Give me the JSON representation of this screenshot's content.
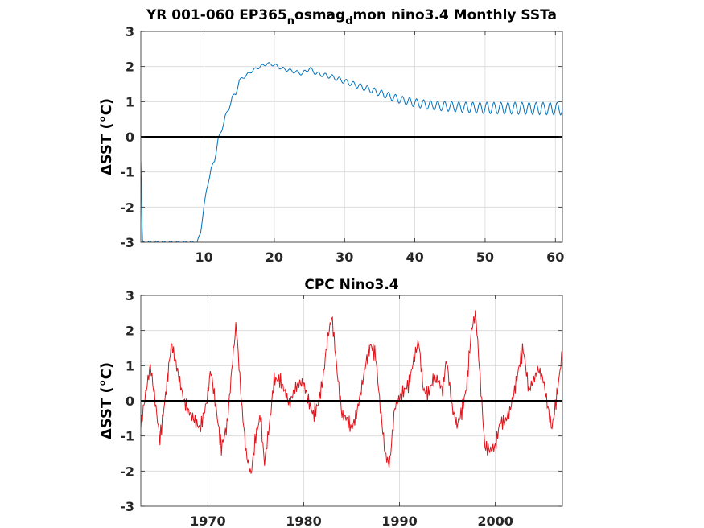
{
  "chart_data": [
    {
      "type": "line",
      "title_parts": [
        "YR 001-060 EP365",
        "n",
        "osmag",
        "d",
        "mon nino3.4 Monthly SSTa"
      ],
      "ylabel": "ΔSST (°C)",
      "xlim": [
        1,
        61
      ],
      "ylim": [
        -3,
        3
      ],
      "xticks": [
        10,
        20,
        30,
        40,
        50,
        60
      ],
      "yticks": [
        -3,
        -2,
        -1,
        0,
        1,
        2,
        3
      ],
      "grid": true,
      "zero_line": 0,
      "series": [
        {
          "color": "#0072bd",
          "x": [
            1.0,
            1.1,
            1.2,
            9.0,
            9.5,
            10.0,
            10.3,
            11.0,
            11.5,
            12.0,
            12.5,
            13.0,
            13.5,
            14.0,
            14.5,
            15.0,
            16.0,
            17.0,
            18.0,
            19.0,
            20.0,
            21.0,
            22.0,
            23.0,
            24.0,
            25.0,
            26.0,
            28.0,
            30.0,
            32.0,
            35.0,
            38.0,
            40.0,
            42.0,
            45.0,
            48.0,
            50.0,
            55.0,
            60.0,
            61.0
          ],
          "y": [
            -0.7,
            -1.5,
            -3.0,
            -3.0,
            -2.75,
            -1.95,
            -1.6,
            -0.9,
            -0.7,
            -0.05,
            0.15,
            0.6,
            0.75,
            1.15,
            1.2,
            1.6,
            1.75,
            1.9,
            2.0,
            2.08,
            2.05,
            1.95,
            1.9,
            1.85,
            1.8,
            1.95,
            1.8,
            1.72,
            1.58,
            1.45,
            1.25,
            1.05,
            0.97,
            0.9,
            0.86,
            0.83,
            0.82,
            0.81,
            0.8,
            0.8
          ],
          "seasonal_amplitude": [
            [
              1,
              0.03
            ],
            [
              20,
              0.04
            ],
            [
              30,
              0.07
            ],
            [
              40,
              0.12
            ],
            [
              50,
              0.16
            ],
            [
              61,
              0.18
            ]
          ]
        }
      ]
    },
    {
      "type": "line",
      "title": "CPC Nino3.4",
      "ylabel": "ΔSST (°C)",
      "xlim": [
        1963,
        2007
      ],
      "ylim": [
        -3,
        3
      ],
      "xticks": [
        1970,
        1980,
        1990,
        2000
      ],
      "yticks": [
        -3,
        -2,
        -1,
        0,
        1,
        2,
        3
      ],
      "grid": true,
      "zero_line": 0,
      "series": [
        {
          "color": "#e0141b",
          "x": [
            1963.0,
            1963.5,
            1964.0,
            1964.4,
            1965.0,
            1965.6,
            1966.2,
            1966.8,
            1967.5,
            1968.0,
            1968.5,
            1969.2,
            1969.9,
            1970.3,
            1970.9,
            1971.4,
            1972.0,
            1972.6,
            1972.95,
            1973.5,
            1974.0,
            1974.5,
            1975.0,
            1975.5,
            1975.9,
            1976.5,
            1976.9,
            1977.5,
            1978.0,
            1978.5,
            1979.0,
            1979.5,
            1980.0,
            1980.5,
            1981.0,
            1981.5,
            1982.0,
            1982.5,
            1982.95,
            1983.5,
            1984.0,
            1984.5,
            1985.0,
            1985.5,
            1986.0,
            1986.5,
            1987.0,
            1987.5,
            1988.0,
            1988.5,
            1988.95,
            1989.5,
            1990.0,
            1990.5,
            1991.0,
            1991.5,
            1992.0,
            1992.5,
            1993.0,
            1993.5,
            1994.0,
            1994.5,
            1994.9,
            1995.5,
            1996.0,
            1996.5,
            1997.0,
            1997.5,
            1997.95,
            1998.5,
            1998.9,
            1999.5,
            2000.0,
            2000.5,
            2001.0,
            2001.5,
            2002.0,
            2002.5,
            2002.9,
            2003.5,
            2004.0,
            2004.5,
            2005.0,
            2005.5,
            2005.9,
            2006.5,
            2006.9,
            2007.0
          ],
          "y": [
            -0.7,
            0.2,
            1.0,
            0.2,
            -1.1,
            0.2,
            1.65,
            0.9,
            0.0,
            -0.3,
            -0.5,
            -0.8,
            0.0,
            0.9,
            -0.3,
            -1.35,
            -0.7,
            1.2,
            2.2,
            0.0,
            -1.5,
            -2.1,
            -1.0,
            -0.4,
            -1.8,
            -0.5,
            0.6,
            0.6,
            0.3,
            -0.1,
            0.3,
            0.5,
            0.5,
            0.0,
            -0.4,
            -0.1,
            0.6,
            1.8,
            2.4,
            0.8,
            -0.4,
            -0.5,
            -0.8,
            -0.4,
            0.3,
            1.1,
            1.6,
            1.3,
            -0.2,
            -1.5,
            -1.85,
            -0.2,
            0.1,
            0.3,
            0.5,
            1.2,
            1.7,
            0.3,
            0.2,
            0.6,
            0.6,
            0.3,
            1.2,
            -0.2,
            -0.7,
            -0.3,
            0.4,
            2.0,
            2.5,
            0.3,
            -1.3,
            -1.4,
            -1.3,
            -0.6,
            -0.6,
            -0.3,
            0.3,
            1.0,
            1.5,
            0.3,
            0.6,
            0.9,
            0.6,
            -0.2,
            -0.8,
            0.3,
            1.2,
            1.3
          ]
        }
      ]
    }
  ]
}
